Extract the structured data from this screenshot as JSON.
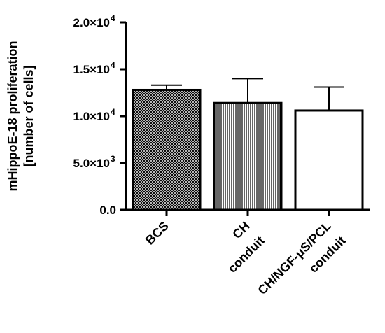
{
  "chart_data": {
    "type": "bar",
    "ylabel_lines": [
      "mHippoE-18 proliferation",
      "[number of cells]"
    ],
    "xlabel": "",
    "categories": [
      {
        "lines": [
          "BCS"
        ]
      },
      {
        "lines": [
          "CH",
          "conduit"
        ]
      },
      {
        "lines": [
          "CH/NGF-μS/PCL",
          "conduit"
        ]
      }
    ],
    "series": [
      {
        "values": [
          12800,
          11400,
          10600
        ],
        "error_upper": [
          500,
          2600,
          2500
        ],
        "fills": [
          "crosshatch",
          "vertical-stripes",
          "white"
        ]
      }
    ],
    "ylim": [
      0,
      20000
    ],
    "yticks": [
      {
        "value": 0,
        "label": "0.0",
        "exp": ""
      },
      {
        "value": 5000,
        "label": "5.0×10",
        "exp": "3"
      },
      {
        "value": 10000,
        "label": "1.0×10",
        "exp": "4"
      },
      {
        "value": 15000,
        "label": "1.5×10",
        "exp": "4"
      },
      {
        "value": 20000,
        "label": "2.0×10",
        "exp": "4"
      }
    ],
    "grid": false,
    "colors": {
      "stroke": "#000000",
      "fill_dark": "#555555",
      "background": "#ffffff"
    }
  }
}
